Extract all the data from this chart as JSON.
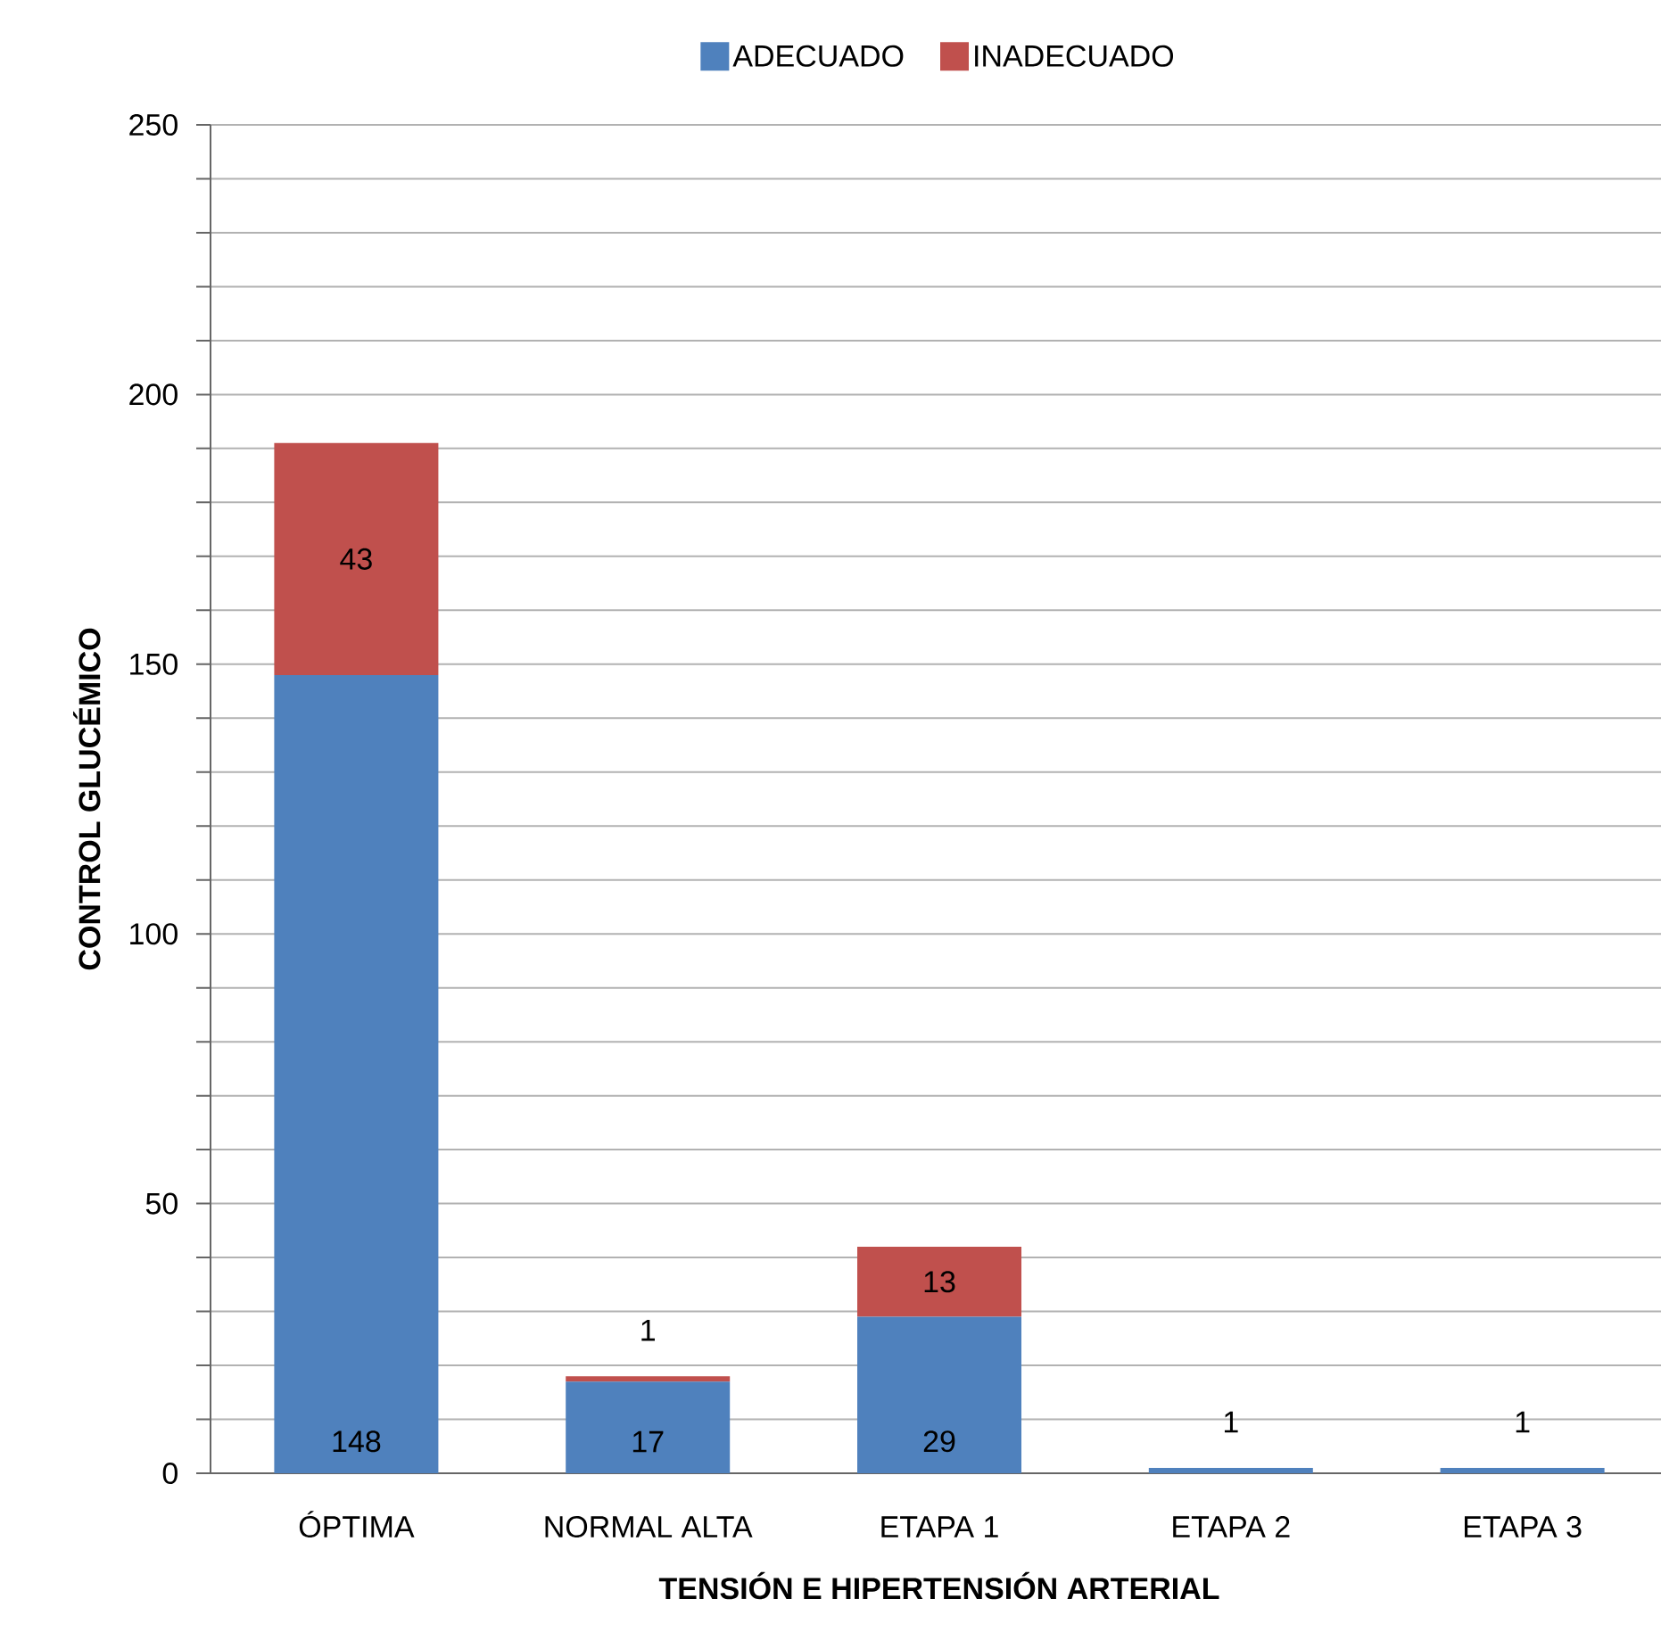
{
  "chart_data": {
    "type": "bar",
    "stacked": true,
    "xlabel": "TENSIÓN E HIPERTENSIÓN ARTERIAL",
    "ylabel": "CONTROL GLUCÉMICO",
    "categories": [
      "ÓPTIMA",
      "NORMAL ALTA",
      "ETAPA 1",
      "ETAPA 2",
      "ETAPA 3"
    ],
    "series": [
      {
        "name": "ADECUADO",
        "color": "#4f81bd",
        "values": [
          148,
          17,
          29,
          1,
          1
        ]
      },
      {
        "name": "INADECUADO",
        "color": "#c0504d",
        "values": [
          43,
          1,
          13,
          null,
          null
        ]
      }
    ],
    "ylim": [
      0,
      250
    ],
    "yticks": [
      0,
      {
        "value": 10,
        "label": null
      },
      {
        "value": 20,
        "label": null
      },
      {
        "value": 30,
        "label": null
      },
      {
        "value": 40,
        "label": null
      },
      50,
      {
        "value": 60,
        "label": null
      },
      {
        "value": 70,
        "label": null
      },
      {
        "value": 80,
        "label": null
      },
      {
        "value": 90,
        "label": null
      },
      100,
      {
        "value": 110,
        "label": null
      },
      {
        "value": 120,
        "label": null
      },
      {
        "value": 130,
        "label": null
      },
      {
        "value": 140,
        "label": null
      },
      150,
      {
        "value": 160,
        "label": null
      },
      {
        "value": 170,
        "label": null
      },
      {
        "value": 180,
        "label": null
      },
      {
        "value": 190,
        "label": null
      },
      200,
      {
        "value": 210,
        "label": null
      },
      {
        "value": 220,
        "label": null
      },
      {
        "value": 230,
        "label": null
      },
      {
        "value": 240,
        "label": null
      },
      250
    ],
    "grid": "y",
    "legend": "top",
    "data_labels": true
  }
}
